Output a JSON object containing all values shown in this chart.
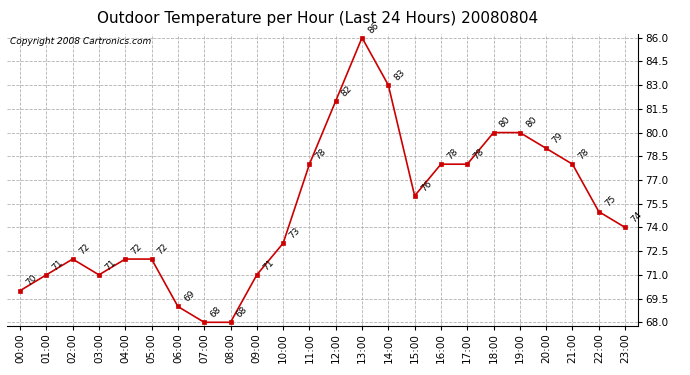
{
  "title": "Outdoor Temperature per Hour (Last 24 Hours) 20080804",
  "copyright": "Copyright 2008 Cartronics.com",
  "hours": [
    "00:00",
    "01:00",
    "02:00",
    "03:00",
    "04:00",
    "05:00",
    "06:00",
    "07:00",
    "08:00",
    "09:00",
    "10:00",
    "11:00",
    "12:00",
    "13:00",
    "14:00",
    "15:00",
    "16:00",
    "17:00",
    "18:00",
    "19:00",
    "20:00",
    "21:00",
    "22:00",
    "23:00"
  ],
  "temps": [
    70,
    71,
    72,
    71,
    72,
    72,
    69,
    68,
    68,
    71,
    73,
    78,
    82,
    86,
    83,
    76,
    78,
    78,
    80,
    80,
    79,
    78,
    75,
    74
  ],
  "ylim_min": 67.75,
  "ylim_max": 86.25,
  "yticks": [
    68.0,
    69.5,
    71.0,
    72.5,
    74.0,
    75.5,
    77.0,
    78.5,
    80.0,
    81.5,
    83.0,
    84.5,
    86.0
  ],
  "line_color": "#cc0000",
  "marker_color": "#cc0000",
  "bg_color": "#ffffff",
  "grid_color": "#aaaaaa",
  "title_fontsize": 11,
  "copyright_fontsize": 6.5,
  "label_fontsize": 6.5,
  "tick_fontsize": 7.5
}
